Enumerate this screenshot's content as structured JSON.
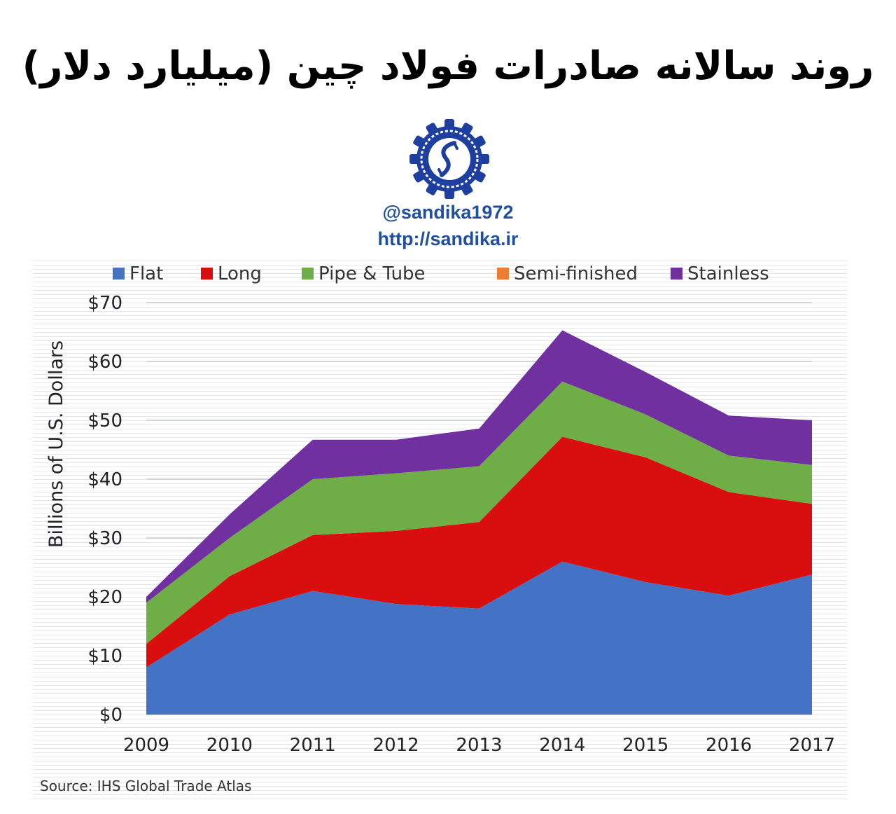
{
  "header": {
    "title": "روند سالانه صادرات فولاد چین (میلیارد دلار)",
    "handle": "@sandika1972",
    "site": "http://sandika.ir"
  },
  "logo": {
    "icon": "sandika-logo-icon",
    "color": "#1f3fa0"
  },
  "chart_data": {
    "type": "area",
    "stacked": true,
    "title": "",
    "xlabel": "",
    "ylabel": "Billions of U.S. Dollars",
    "x": [
      "2009",
      "2010",
      "2011",
      "2012",
      "2013",
      "2014",
      "2015",
      "2016",
      "2017"
    ],
    "ylim": [
      0,
      70
    ],
    "yticks": [
      "$0",
      "$10",
      "$20",
      "$30",
      "$40",
      "$50",
      "$60",
      "$70"
    ],
    "ytick_values": [
      0,
      10,
      20,
      30,
      40,
      50,
      60,
      70
    ],
    "grid": true,
    "legend": "top",
    "series": [
      {
        "name": "Flat",
        "color": "#4472c4",
        "values": [
          8,
          17,
          21,
          18.8,
          18,
          26,
          22.5,
          20.2,
          23.8
        ]
      },
      {
        "name": "Long",
        "color": "#d90f0f",
        "values": [
          4,
          6.5,
          9.5,
          12.4,
          14.7,
          21.2,
          21.2,
          17.6,
          12
        ]
      },
      {
        "name": "Pipe & Tube",
        "color": "#6fad47",
        "values": [
          7,
          6.5,
          9.5,
          9.8,
          9.5,
          9.4,
          7.3,
          6.2,
          6.6
        ]
      },
      {
        "name": "Semi-finished",
        "color": "#ed7d31",
        "values": [
          0,
          0,
          0,
          0,
          0,
          0,
          0,
          0,
          0
        ]
      },
      {
        "name": "Stainless",
        "color": "#7030a0",
        "values": [
          1,
          4,
          6.7,
          5.7,
          6.4,
          8.7,
          7.2,
          6.8,
          7.6
        ]
      }
    ],
    "source": "Source: IHS Global Trade Atlas"
  }
}
